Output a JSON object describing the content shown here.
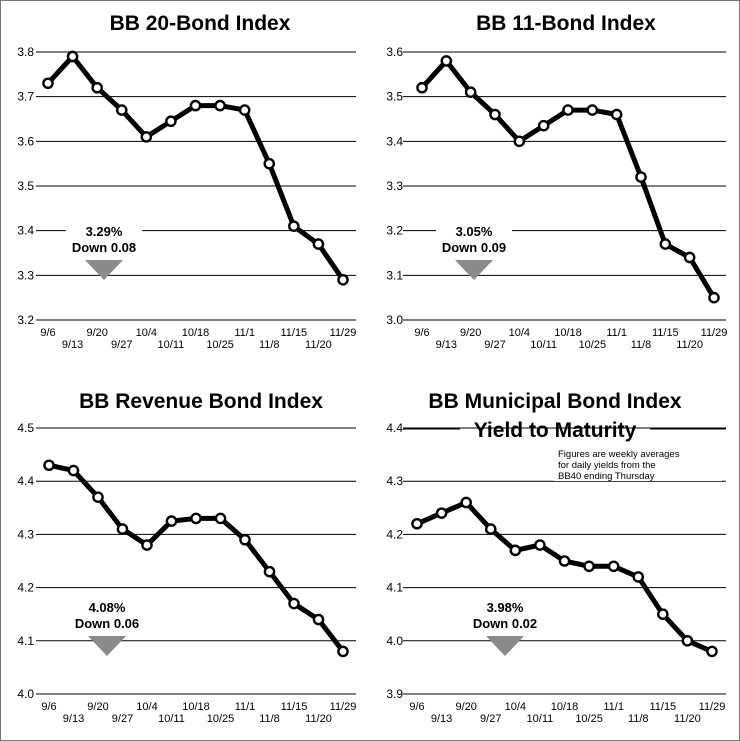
{
  "chart_data": [
    {
      "type": "line",
      "title": "BB 20-Bond Index",
      "subtitle": "",
      "categories": [
        "9/6",
        "9/13",
        "9/20",
        "9/27",
        "10/4",
        "10/11",
        "10/18",
        "10/25",
        "11/1",
        "11/8",
        "11/15",
        "11/20",
        "11/29"
      ],
      "values": [
        3.73,
        3.79,
        3.72,
        3.67,
        3.61,
        3.645,
        3.68,
        3.68,
        3.67,
        3.55,
        3.41,
        3.37,
        3.29
      ],
      "ylim": [
        3.2,
        3.8
      ],
      "yticks": [
        "3.2",
        "3.3",
        "3.4",
        "3.5",
        "3.6",
        "3.7",
        "3.8"
      ],
      "callout": {
        "value": "3.29%",
        "change": "Down 0.08"
      },
      "note": []
    },
    {
      "type": "line",
      "title": "BB 11-Bond Index",
      "subtitle": "",
      "categories": [
        "9/6",
        "9/13",
        "9/20",
        "9/27",
        "10/4",
        "10/11",
        "10/18",
        "10/25",
        "11/1",
        "11/8",
        "11/15",
        "11/20",
        "11/29"
      ],
      "values": [
        3.52,
        3.58,
        3.51,
        3.46,
        3.4,
        3.435,
        3.47,
        3.47,
        3.46,
        3.32,
        3.17,
        3.14,
        3.05
      ],
      "ylim": [
        3.0,
        3.6
      ],
      "yticks": [
        "3.0",
        "3.1",
        "3.2",
        "3.3",
        "3.4",
        "3.5",
        "3.6"
      ],
      "callout": {
        "value": "3.05%",
        "change": "Down 0.09"
      },
      "note": []
    },
    {
      "type": "line",
      "title": "BB Revenue Bond Index",
      "subtitle": "",
      "categories": [
        "9/6",
        "9/13",
        "9/20",
        "9/27",
        "10/4",
        "10/11",
        "10/18",
        "10/25",
        "11/1",
        "11/8",
        "11/15",
        "11/20",
        "11/29"
      ],
      "values": [
        4.43,
        4.42,
        4.37,
        4.31,
        4.28,
        4.325,
        4.33,
        4.33,
        4.29,
        4.23,
        4.17,
        4.14,
        4.08
      ],
      "ylim": [
        4.0,
        4.5
      ],
      "yticks": [
        "4.0",
        "4.1",
        "4.2",
        "4.3",
        "4.4",
        "4.5"
      ],
      "callout": {
        "value": "4.08%",
        "change": "Down 0.06"
      },
      "note": []
    },
    {
      "type": "line",
      "title": "BB Municipal Bond Index",
      "subtitle": "Yield to Maturity",
      "categories": [
        "9/6",
        "9/13",
        "9/20",
        "9/27",
        "10/4",
        "10/11",
        "10/18",
        "10/25",
        "11/1",
        "11/8",
        "11/15",
        "11/20",
        "11/29"
      ],
      "values": [
        4.22,
        4.24,
        4.26,
        4.21,
        4.17,
        4.18,
        4.15,
        4.14,
        4.14,
        4.12,
        4.05,
        4.0,
        3.98
      ],
      "ylim": [
        3.9,
        4.4
      ],
      "yticks": [
        "3.9",
        "4.0",
        "4.1",
        "4.2",
        "4.3",
        "4.4"
      ],
      "callout": {
        "value": "3.98%",
        "change": "Down 0.02"
      },
      "note": [
        "Figures are weekly averages",
        "for daily yields from the",
        "BB40 ending Thursday"
      ]
    }
  ],
  "colors": {
    "line": "#000000",
    "marker_fill": "#ffffff",
    "grid": "#000000",
    "arrow": "#8a8a8a"
  }
}
